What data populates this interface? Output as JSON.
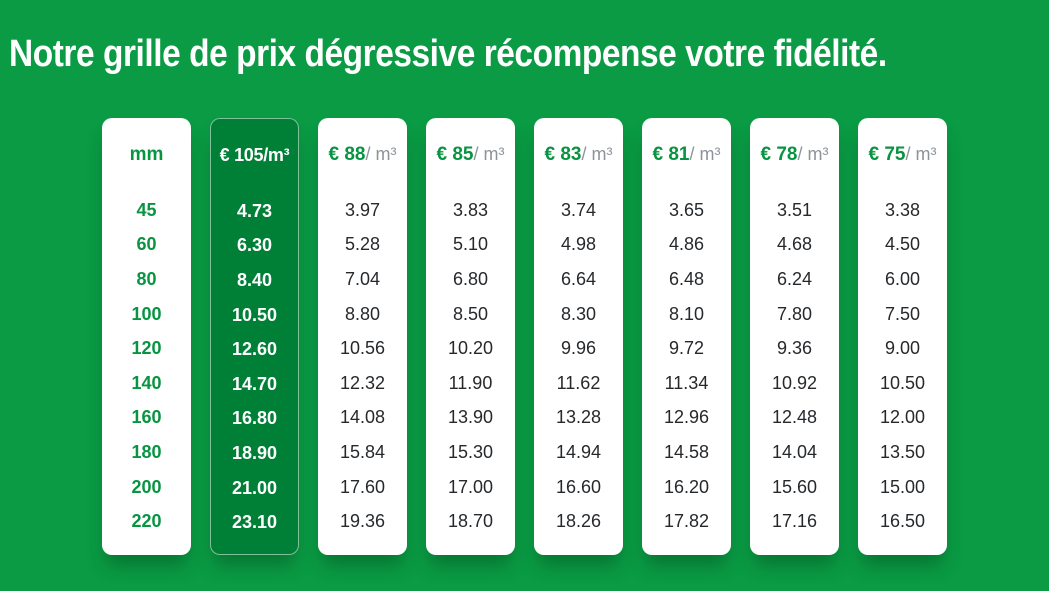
{
  "title": "Notre grille de prix dégressive récompense votre fidélité.",
  "colors": {
    "background_green": "#0a9b44",
    "highlight_card_green": "#008037",
    "accent_text_green": "#089441",
    "unit_gray": "#8e939b",
    "value_dark": "#26292c",
    "card_white": "#ffffff",
    "title_white": "#ffffff"
  },
  "table": {
    "columns": [
      {
        "kind": "dim",
        "header": "mm",
        "values": [
          "45",
          "60",
          "80",
          "100",
          "120",
          "140",
          "160",
          "180",
          "200",
          "220"
        ]
      },
      {
        "kind": "highlight",
        "header": "€ 105/m³",
        "values": [
          "4.73",
          "6.30",
          "8.40",
          "10.50",
          "12.60",
          "14.70",
          "16.80",
          "18.90",
          "21.00",
          "23.10"
        ]
      },
      {
        "kind": "std",
        "header_price": "€ 88",
        "header_unit": "/ m³",
        "values": [
          "3.97",
          "5.28",
          "7.04",
          "8.80",
          "10.56",
          "12.32",
          "14.08",
          "15.84",
          "17.60",
          "19.36"
        ]
      },
      {
        "kind": "std",
        "header_price": "€ 85",
        "header_unit": "/ m³",
        "values": [
          "3.83",
          "5.10",
          "6.80",
          "8.50",
          "10.20",
          "11.90",
          "13.90",
          "15.30",
          "17.00",
          "18.70"
        ]
      },
      {
        "kind": "std",
        "header_price": "€ 83",
        "header_unit": "/ m³",
        "values": [
          "3.74",
          "4.98",
          "6.64",
          "8.30",
          "9.96",
          "11.62",
          "13.28",
          "14.94",
          "16.60",
          "18.26"
        ]
      },
      {
        "kind": "std",
        "header_price": "€ 81",
        "header_unit": "/ m³",
        "values": [
          "3.65",
          "4.86",
          "6.48",
          "8.10",
          "9.72",
          "11.34",
          "12.96",
          "14.58",
          "16.20",
          "17.82"
        ]
      },
      {
        "kind": "std",
        "header_price": "€ 78",
        "header_unit": "/ m³",
        "values": [
          "3.51",
          "4.68",
          "6.24",
          "7.80",
          "9.36",
          "10.92",
          "12.48",
          "14.04",
          "15.60",
          "17.16"
        ]
      },
      {
        "kind": "std",
        "header_price": "€ 75",
        "header_unit": "/ m³",
        "values": [
          "3.38",
          "4.50",
          "6.00",
          "7.50",
          "9.00",
          "10.50",
          "12.00",
          "13.50",
          "15.00",
          "16.50"
        ]
      }
    ]
  },
  "chart_data": {
    "type": "table",
    "title": "Notre grille de prix dégressive récompense votre fidélité.",
    "columns": [
      "mm",
      "€ 105/m³",
      "€ 88/ m³",
      "€ 85/ m³",
      "€ 83/ m³",
      "€ 81/ m³",
      "€ 78/ m³",
      "€ 75/ m³"
    ],
    "rows": [
      [
        45,
        4.73,
        3.97,
        3.83,
        3.74,
        3.65,
        3.51,
        3.38
      ],
      [
        60,
        6.3,
        5.28,
        5.1,
        4.98,
        4.86,
        4.68,
        4.5
      ],
      [
        80,
        8.4,
        7.04,
        6.8,
        6.64,
        6.48,
        6.24,
        6.0
      ],
      [
        100,
        10.5,
        8.8,
        8.5,
        8.3,
        8.1,
        7.8,
        7.5
      ],
      [
        120,
        12.6,
        10.56,
        10.2,
        9.96,
        9.72,
        9.36,
        9.0
      ],
      [
        140,
        14.7,
        12.32,
        11.9,
        11.62,
        11.34,
        10.92,
        10.5
      ],
      [
        160,
        16.8,
        14.08,
        13.9,
        13.28,
        12.96,
        12.48,
        12.0
      ],
      [
        180,
        18.9,
        15.84,
        15.3,
        14.94,
        14.58,
        14.04,
        13.5
      ],
      [
        200,
        21.0,
        17.6,
        17.0,
        16.6,
        16.2,
        15.6,
        15.0
      ],
      [
        220,
        23.1,
        19.36,
        18.7,
        18.26,
        17.82,
        17.16,
        16.5
      ]
    ],
    "layout": {
      "highlighted_column": "€ 105/m³",
      "row_header_column": "mm",
      "legend_position": "none",
      "grid": false
    }
  }
}
